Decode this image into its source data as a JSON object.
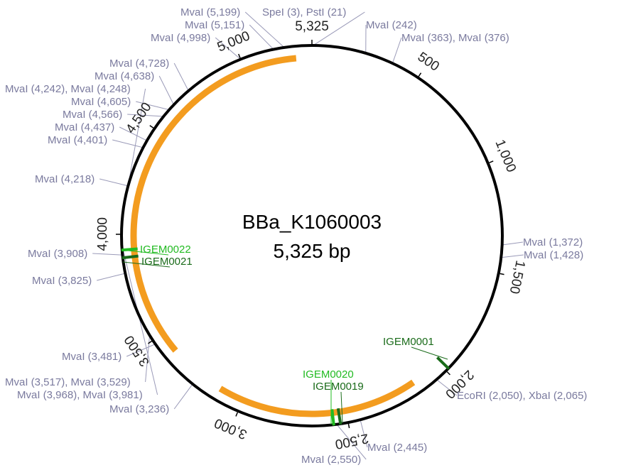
{
  "plasmid": {
    "name": "BBa_K1060003",
    "length_label": "5,325 bp",
    "total_bp": 5325
  },
  "colors": {
    "backbone": "#000000",
    "orange_feature": "#f39c1f",
    "feature_green_dark": "#1a6b1a",
    "feature_green_bright": "#22bb22",
    "site_label": "#7a7a9e"
  },
  "ticks": [
    {
      "pos": 500,
      "label": "500"
    },
    {
      "pos": 1000,
      "label": "1,000"
    },
    {
      "pos": 1500,
      "label": "1,500"
    },
    {
      "pos": 2000,
      "label": "2,000"
    },
    {
      "pos": 2500,
      "label": "2,500"
    },
    {
      "pos": 3000,
      "label": "3,000"
    },
    {
      "pos": 3500,
      "label": "3,500"
    },
    {
      "pos": 4000,
      "label": "4,000"
    },
    {
      "pos": 4500,
      "label": "4,500"
    },
    {
      "pos": 5000,
      "label": "5,000"
    },
    {
      "pos": 5325,
      "label": "5,325"
    }
  ],
  "orange_arcs": [
    {
      "start": 3400,
      "end": 5250
    },
    {
      "start": 2150,
      "end": 3120
    }
  ],
  "features": [
    {
      "name": "IGEM0022",
      "pos": 3930,
      "color": "#22bb22"
    },
    {
      "name": "IGEM0021",
      "pos": 3895,
      "color": "#1a6b1a"
    },
    {
      "name": "IGEM0001",
      "pos": 1985,
      "color": "#1a6b1a"
    },
    {
      "name": "IGEM0020",
      "pos": 2565,
      "color": "#22bb22"
    },
    {
      "name": "IGEM0019",
      "pos": 2535,
      "color": "#1a6b1a"
    }
  ],
  "sites": [
    {
      "text": "MvaI (5,199)",
      "pos": 5199
    },
    {
      "text": "SpeI (3), PstI (21)",
      "pos": 10
    },
    {
      "text": "MvaI (5,151)",
      "pos": 5151
    },
    {
      "text": "MvaI (242)",
      "pos": 242
    },
    {
      "text": "MvaI (4,998)",
      "pos": 4998
    },
    {
      "text": "MvaI (363), MvaI (376)",
      "pos": 370
    },
    {
      "text": "MvaI (4,728)",
      "pos": 4728
    },
    {
      "text": "MvaI (4,638)",
      "pos": 4638
    },
    {
      "text": "MvaI (4,242), MvaI (4,248)",
      "pos": 4245
    },
    {
      "text": "MvaI (4,605)",
      "pos": 4605
    },
    {
      "text": "MvaI (4,566)",
      "pos": 4566
    },
    {
      "text": "MvaI (4,437)",
      "pos": 4437
    },
    {
      "text": "MvaI (4,401)",
      "pos": 4401
    },
    {
      "text": "MvaI (4,218)",
      "pos": 4218
    },
    {
      "text": "MvaI (1,372)",
      "pos": 1372
    },
    {
      "text": "MvaI (1,428)",
      "pos": 1428
    },
    {
      "text": "MvaI (3,908)",
      "pos": 3908
    },
    {
      "text": "MvaI (3,825)",
      "pos": 3825
    },
    {
      "text": "MvaI (3,481)",
      "pos": 3481
    },
    {
      "text": "MvaI (3,517), MvaI (3,529)",
      "pos": 3523
    },
    {
      "text": "MvaI (3,968), MvaI (3,981)",
      "pos": 3975
    },
    {
      "text": "MvaI (3,236)",
      "pos": 3236
    },
    {
      "text": "EcoRI (2,050), XbaI (2,065)",
      "pos": 2057
    },
    {
      "text": "MvaI (2,445)",
      "pos": 2445
    },
    {
      "text": "MvaI (2,550)",
      "pos": 2550
    }
  ]
}
